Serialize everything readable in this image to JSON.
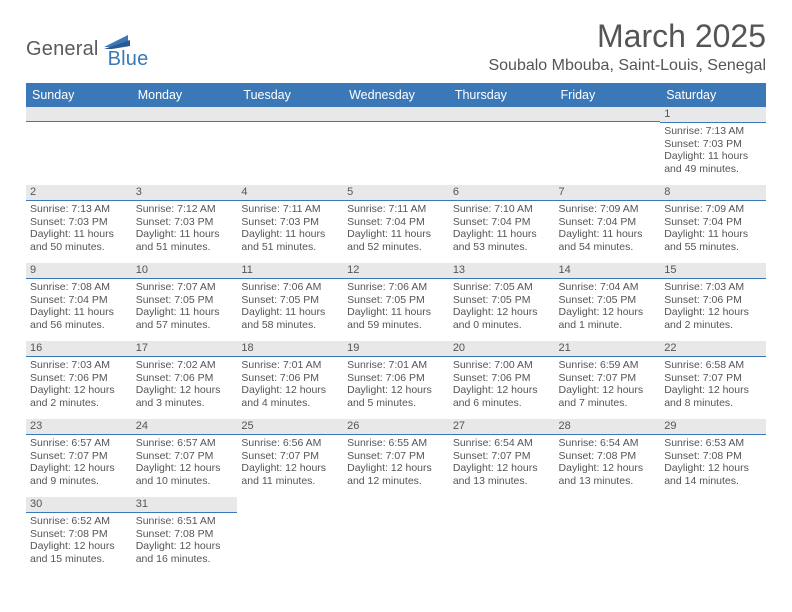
{
  "logo": {
    "part1": "General",
    "part2": "Blue"
  },
  "title": "March 2025",
  "location": "Soubalo Mbouba, Saint-Louis, Senegal",
  "colors": {
    "header_bg": "#3b78b8",
    "header_text": "#ffffff",
    "daynum_bg": "#e8e8e8",
    "divider": "#3b78b8",
    "body_text": "#555555",
    "page_bg": "#ffffff"
  },
  "dayHeaders": [
    "Sunday",
    "Monday",
    "Tuesday",
    "Wednesday",
    "Thursday",
    "Friday",
    "Saturday"
  ],
  "weeks": [
    [
      null,
      null,
      null,
      null,
      null,
      null,
      {
        "n": "1",
        "sunrise": "7:13 AM",
        "sunset": "7:03 PM",
        "daylight": "11 hours and 49 minutes."
      }
    ],
    [
      {
        "n": "2",
        "sunrise": "7:13 AM",
        "sunset": "7:03 PM",
        "daylight": "11 hours and 50 minutes."
      },
      {
        "n": "3",
        "sunrise": "7:12 AM",
        "sunset": "7:03 PM",
        "daylight": "11 hours and 51 minutes."
      },
      {
        "n": "4",
        "sunrise": "7:11 AM",
        "sunset": "7:03 PM",
        "daylight": "11 hours and 51 minutes."
      },
      {
        "n": "5",
        "sunrise": "7:11 AM",
        "sunset": "7:04 PM",
        "daylight": "11 hours and 52 minutes."
      },
      {
        "n": "6",
        "sunrise": "7:10 AM",
        "sunset": "7:04 PM",
        "daylight": "11 hours and 53 minutes."
      },
      {
        "n": "7",
        "sunrise": "7:09 AM",
        "sunset": "7:04 PM",
        "daylight": "11 hours and 54 minutes."
      },
      {
        "n": "8",
        "sunrise": "7:09 AM",
        "sunset": "7:04 PM",
        "daylight": "11 hours and 55 minutes."
      }
    ],
    [
      {
        "n": "9",
        "sunrise": "7:08 AM",
        "sunset": "7:04 PM",
        "daylight": "11 hours and 56 minutes."
      },
      {
        "n": "10",
        "sunrise": "7:07 AM",
        "sunset": "7:05 PM",
        "daylight": "11 hours and 57 minutes."
      },
      {
        "n": "11",
        "sunrise": "7:06 AM",
        "sunset": "7:05 PM",
        "daylight": "11 hours and 58 minutes."
      },
      {
        "n": "12",
        "sunrise": "7:06 AM",
        "sunset": "7:05 PM",
        "daylight": "11 hours and 59 minutes."
      },
      {
        "n": "13",
        "sunrise": "7:05 AM",
        "sunset": "7:05 PM",
        "daylight": "12 hours and 0 minutes."
      },
      {
        "n": "14",
        "sunrise": "7:04 AM",
        "sunset": "7:05 PM",
        "daylight": "12 hours and 1 minute."
      },
      {
        "n": "15",
        "sunrise": "7:03 AM",
        "sunset": "7:06 PM",
        "daylight": "12 hours and 2 minutes."
      }
    ],
    [
      {
        "n": "16",
        "sunrise": "7:03 AM",
        "sunset": "7:06 PM",
        "daylight": "12 hours and 2 minutes."
      },
      {
        "n": "17",
        "sunrise": "7:02 AM",
        "sunset": "7:06 PM",
        "daylight": "12 hours and 3 minutes."
      },
      {
        "n": "18",
        "sunrise": "7:01 AM",
        "sunset": "7:06 PM",
        "daylight": "12 hours and 4 minutes."
      },
      {
        "n": "19",
        "sunrise": "7:01 AM",
        "sunset": "7:06 PM",
        "daylight": "12 hours and 5 minutes."
      },
      {
        "n": "20",
        "sunrise": "7:00 AM",
        "sunset": "7:06 PM",
        "daylight": "12 hours and 6 minutes."
      },
      {
        "n": "21",
        "sunrise": "6:59 AM",
        "sunset": "7:07 PM",
        "daylight": "12 hours and 7 minutes."
      },
      {
        "n": "22",
        "sunrise": "6:58 AM",
        "sunset": "7:07 PM",
        "daylight": "12 hours and 8 minutes."
      }
    ],
    [
      {
        "n": "23",
        "sunrise": "6:57 AM",
        "sunset": "7:07 PM",
        "daylight": "12 hours and 9 minutes."
      },
      {
        "n": "24",
        "sunrise": "6:57 AM",
        "sunset": "7:07 PM",
        "daylight": "12 hours and 10 minutes."
      },
      {
        "n": "25",
        "sunrise": "6:56 AM",
        "sunset": "7:07 PM",
        "daylight": "12 hours and 11 minutes."
      },
      {
        "n": "26",
        "sunrise": "6:55 AM",
        "sunset": "7:07 PM",
        "daylight": "12 hours and 12 minutes."
      },
      {
        "n": "27",
        "sunrise": "6:54 AM",
        "sunset": "7:07 PM",
        "daylight": "12 hours and 13 minutes."
      },
      {
        "n": "28",
        "sunrise": "6:54 AM",
        "sunset": "7:08 PM",
        "daylight": "12 hours and 13 minutes."
      },
      {
        "n": "29",
        "sunrise": "6:53 AM",
        "sunset": "7:08 PM",
        "daylight": "12 hours and 14 minutes."
      }
    ],
    [
      {
        "n": "30",
        "sunrise": "6:52 AM",
        "sunset": "7:08 PM",
        "daylight": "12 hours and 15 minutes."
      },
      {
        "n": "31",
        "sunrise": "6:51 AM",
        "sunset": "7:08 PM",
        "daylight": "12 hours and 16 minutes."
      },
      null,
      null,
      null,
      null,
      null
    ]
  ],
  "labels": {
    "sunrise": "Sunrise:",
    "sunset": "Sunset:",
    "daylight": "Daylight:"
  }
}
